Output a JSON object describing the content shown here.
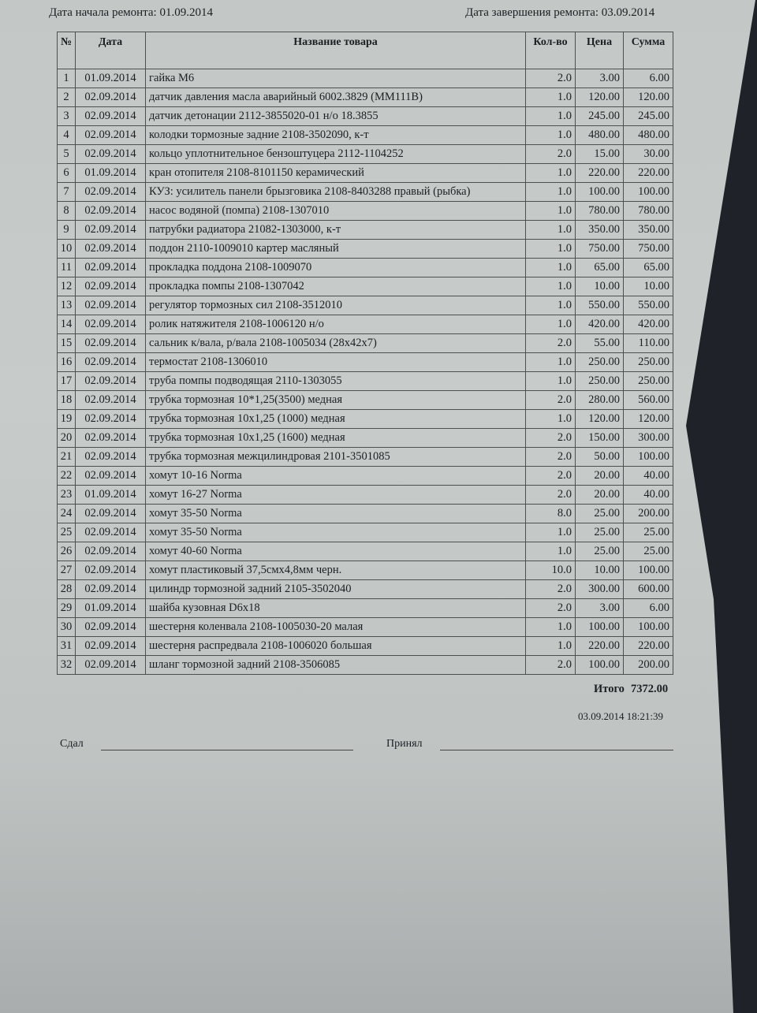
{
  "header": {
    "start_label": "Дата начала ремонта:",
    "start_date": "01.09.2014",
    "end_label": "Дата завершения ремонта:",
    "end_date": "03.09.2014"
  },
  "table": {
    "columns": [
      "№",
      "Дата",
      "Название товара",
      "Кол-во",
      "Цена",
      "Сумма"
    ],
    "rows": [
      [
        "1",
        "01.09.2014",
        "гайка М6",
        "2.0",
        "3.00",
        "6.00"
      ],
      [
        "2",
        "02.09.2014",
        "датчик давления масла аварийный 6002.3829 (ММ111В)",
        "1.0",
        "120.00",
        "120.00"
      ],
      [
        "3",
        "02.09.2014",
        "датчик детонации 2112-3855020-01 н/о 18.3855",
        "1.0",
        "245.00",
        "245.00"
      ],
      [
        "4",
        "02.09.2014",
        "колодки тормозные задние 2108-3502090, к-т",
        "1.0",
        "480.00",
        "480.00"
      ],
      [
        "5",
        "02.09.2014",
        "кольцо уплотнительное бензоштуцера 2112-1104252",
        "2.0",
        "15.00",
        "30.00"
      ],
      [
        "6",
        "01.09.2014",
        "кран отопителя 2108-8101150  керамический",
        "1.0",
        "220.00",
        "220.00"
      ],
      [
        "7",
        "02.09.2014",
        "КУЗ: усилитель панели брызговика 2108-8403288 правый (рыбка)",
        "1.0",
        "100.00",
        "100.00"
      ],
      [
        "8",
        "02.09.2014",
        "насос водяной (помпа) 2108-1307010",
        "1.0",
        "780.00",
        "780.00"
      ],
      [
        "9",
        "02.09.2014",
        "патрубки радиатора 21082-1303000, к-т",
        "1.0",
        "350.00",
        "350.00"
      ],
      [
        "10",
        "02.09.2014",
        "поддон 2110-1009010 картер масляный",
        "1.0",
        "750.00",
        "750.00"
      ],
      [
        "11",
        "02.09.2014",
        "прокладка поддона 2108-1009070",
        "1.0",
        "65.00",
        "65.00"
      ],
      [
        "12",
        "02.09.2014",
        "прокладка помпы 2108-1307042",
        "1.0",
        "10.00",
        "10.00"
      ],
      [
        "13",
        "02.09.2014",
        "регулятор тормозных сил 2108-3512010",
        "1.0",
        "550.00",
        "550.00"
      ],
      [
        "14",
        "02.09.2014",
        "ролик натяжителя 2108-1006120 н/о",
        "1.0",
        "420.00",
        "420.00"
      ],
      [
        "15",
        "02.09.2014",
        "сальник к/вала, р/вала 2108-1005034 (28х42х7)",
        "2.0",
        "55.00",
        "110.00"
      ],
      [
        "16",
        "02.09.2014",
        "термостат 2108-1306010",
        "1.0",
        "250.00",
        "250.00"
      ],
      [
        "17",
        "02.09.2014",
        "труба помпы подводящая 2110-1303055",
        "1.0",
        "250.00",
        "250.00"
      ],
      [
        "18",
        "02.09.2014",
        "трубка тормозная 10*1,25(3500) медная",
        "2.0",
        "280.00",
        "560.00"
      ],
      [
        "19",
        "02.09.2014",
        "трубка тормозная 10х1,25 (1000) медная",
        "1.0",
        "120.00",
        "120.00"
      ],
      [
        "20",
        "02.09.2014",
        "трубка тормозная 10х1,25 (1600) медная",
        "2.0",
        "150.00",
        "300.00"
      ],
      [
        "21",
        "02.09.2014",
        "трубка тормозная межцилиндровая 2101-3501085",
        "2.0",
        "50.00",
        "100.00"
      ],
      [
        "22",
        "02.09.2014",
        "хомут 10-16 Norma",
        "2.0",
        "20.00",
        "40.00"
      ],
      [
        "23",
        "01.09.2014",
        "хомут 16-27 Norma",
        "2.0",
        "20.00",
        "40.00"
      ],
      [
        "24",
        "02.09.2014",
        "хомут 35-50 Norma",
        "8.0",
        "25.00",
        "200.00"
      ],
      [
        "25",
        "02.09.2014",
        "хомут 35-50 Norma",
        "1.0",
        "25.00",
        "25.00"
      ],
      [
        "26",
        "02.09.2014",
        "хомут 40-60 Norma",
        "1.0",
        "25.00",
        "25.00"
      ],
      [
        "27",
        "02.09.2014",
        "хомут пластиковый 37,5смх4,8мм черн.",
        "10.0",
        "10.00",
        "100.00"
      ],
      [
        "28",
        "02.09.2014",
        "цилиндр тормозной задний 2105-3502040",
        "2.0",
        "300.00",
        "600.00"
      ],
      [
        "29",
        "01.09.2014",
        "шайба кузовная D6х18",
        "2.0",
        "3.00",
        "6.00"
      ],
      [
        "30",
        "02.09.2014",
        "шестерня коленвала 2108-1005030-20 малая",
        "1.0",
        "100.00",
        "100.00"
      ],
      [
        "31",
        "02.09.2014",
        "шестерня распредвала 2108-1006020 большая",
        "1.0",
        "220.00",
        "220.00"
      ],
      [
        "32",
        "02.09.2014",
        "шланг тормозной задний 2108-3506085",
        "2.0",
        "100.00",
        "200.00"
      ]
    ]
  },
  "footer": {
    "total_label": "Итого",
    "total_value": "7372.00",
    "timestamp": "03.09.2014 18:21:39",
    "handed_label": "Сдал",
    "received_label": "Принял"
  }
}
